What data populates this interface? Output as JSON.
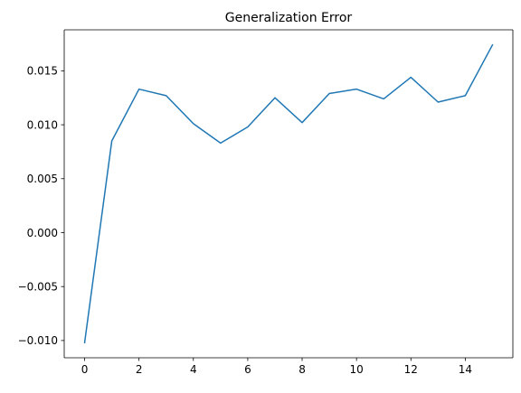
{
  "chart_data": {
    "type": "line",
    "title": "Generalization Error",
    "xlabel": "",
    "ylabel": "",
    "x": [
      0,
      1,
      2,
      3,
      4,
      5,
      6,
      7,
      8,
      9,
      10,
      11,
      12,
      13,
      14,
      15
    ],
    "series": [
      {
        "color": "#1f77b4",
        "values": [
          -0.0102,
          0.0085,
          0.0133,
          0.0127,
          0.0101,
          0.0083,
          0.0098,
          0.0125,
          0.0102,
          0.0129,
          0.0133,
          0.0124,
          0.0144,
          0.0121,
          0.0127,
          0.0174
        ]
      }
    ],
    "xlim": [
      -0.75,
      15.75
    ],
    "ylim": [
      -0.0116,
      0.0188
    ],
    "xticks": [
      0,
      2,
      4,
      6,
      8,
      10,
      12,
      14
    ],
    "xtick_labels": [
      "0",
      "2",
      "4",
      "6",
      "8",
      "10",
      "12",
      "14"
    ],
    "yticks": [
      -0.01,
      -0.005,
      0.0,
      0.005,
      0.01,
      0.015
    ],
    "ytick_labels": [
      "−0.010",
      "−0.005",
      "0.000",
      "0.005",
      "0.010",
      "0.015"
    ],
    "grid": false,
    "legend": "none"
  }
}
